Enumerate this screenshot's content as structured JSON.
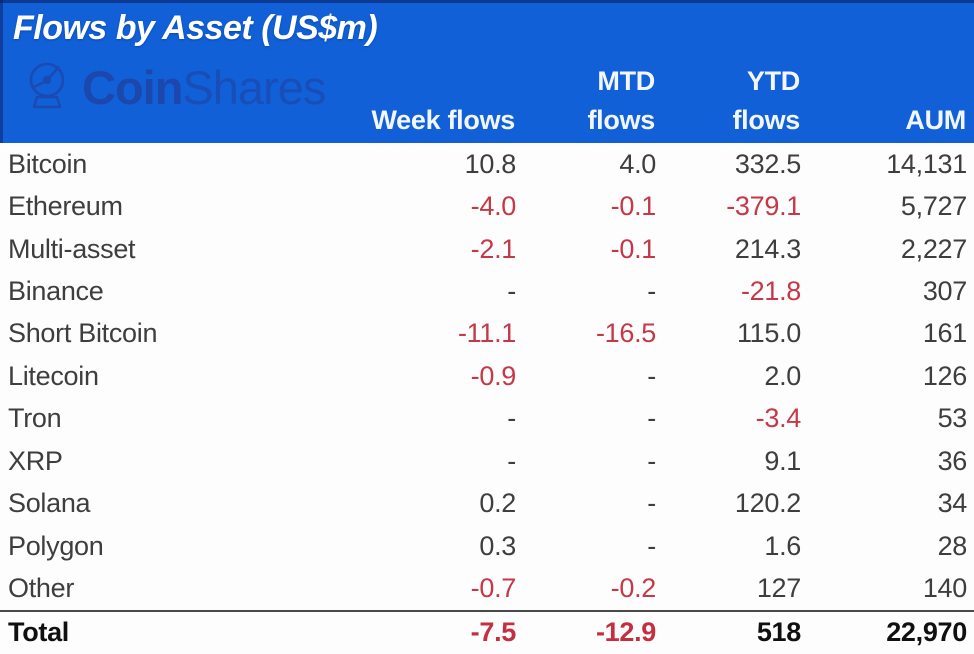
{
  "header": {
    "title": "Flows by Asset (US$m)",
    "watermark": {
      "bold": "Coin",
      "light": "Shares",
      "logo": "coinshares-ammonite-icon"
    },
    "columns": [
      "Week flows",
      "MTD\nflows",
      "YTD\nflows",
      "AUM"
    ]
  },
  "table": {
    "rows": [
      {
        "asset": "Bitcoin",
        "week": "10.8",
        "mtd": "4.0",
        "ytd": "332.5",
        "aum": "14,131"
      },
      {
        "asset": "Ethereum",
        "week": "-4.0",
        "mtd": "-0.1",
        "ytd": "-379.1",
        "aum": "5,727"
      },
      {
        "asset": "Multi-asset",
        "week": "-2.1",
        "mtd": "-0.1",
        "ytd": "214.3",
        "aum": "2,227"
      },
      {
        "asset": "Binance",
        "week": "-",
        "mtd": "-",
        "ytd": "-21.8",
        "aum": "307"
      },
      {
        "asset": "Short Bitcoin",
        "week": "-11.1",
        "mtd": "-16.5",
        "ytd": "115.0",
        "aum": "161"
      },
      {
        "asset": "Litecoin",
        "week": "-0.9",
        "mtd": "-",
        "ytd": "2.0",
        "aum": "126"
      },
      {
        "asset": "Tron",
        "week": "-",
        "mtd": "-",
        "ytd": "-3.4",
        "aum": "53"
      },
      {
        "asset": "XRP",
        "week": "-",
        "mtd": "-",
        "ytd": "9.1",
        "aum": "36"
      },
      {
        "asset": "Solana",
        "week": "0.2",
        "mtd": "-",
        "ytd": "120.2",
        "aum": "34"
      },
      {
        "asset": "Polygon",
        "week": "0.3",
        "mtd": "-",
        "ytd": "1.6",
        "aum": "28"
      },
      {
        "asset": "Other",
        "week": "-0.7",
        "mtd": "-0.2",
        "ytd": "127",
        "aum": "140"
      }
    ],
    "total": {
      "asset": "Total",
      "week": "-7.5",
      "mtd": "-12.9",
      "ytd": "518",
      "aum": "22,970"
    }
  },
  "colors": {
    "header_bg": "#1160d8",
    "header_text": "#f2f7ff",
    "watermark": "#1d47ab",
    "negative": "#c63848",
    "body_text": "#3e3e3e",
    "total_text": "#101010"
  }
}
